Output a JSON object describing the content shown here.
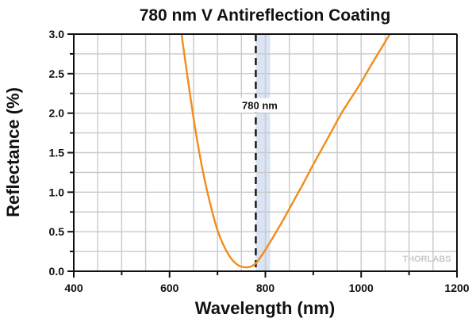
{
  "chart_data": {
    "type": "line",
    "title": "780 nm V Antireflection Coating",
    "xlabel": "Wavelength (nm)",
    "ylabel": "Reflectance (%)",
    "xlim": [
      400,
      1200
    ],
    "ylim": [
      0,
      3.0
    ],
    "xticks": [
      400,
      600,
      800,
      1000,
      1200
    ],
    "xtick_labels": [
      "400",
      "600",
      "800",
      "1000",
      "1200"
    ],
    "yticks": [
      0,
      0.5,
      1.0,
      1.5,
      2.0,
      2.5,
      3.0
    ],
    "ytick_labels": [
      "0.0",
      "0.5",
      "1.0",
      "1.5",
      "2.0",
      "2.5",
      "3.0"
    ],
    "x_minor_step": 100,
    "y_minor_step": 0.25,
    "grid": true,
    "series": [
      {
        "name": "Reflectance",
        "color": "#f28c1c",
        "x": [
          625,
          640,
          655,
          670,
          685,
          700,
          715,
          730,
          745,
          760,
          770,
          780,
          790,
          800,
          820,
          840,
          860,
          880,
          900,
          920,
          940,
          960,
          980,
          1000,
          1020,
          1040,
          1060
        ],
        "y": [
          3.0,
          2.35,
          1.75,
          1.25,
          0.85,
          0.52,
          0.3,
          0.15,
          0.07,
          0.05,
          0.06,
          0.1,
          0.18,
          0.27,
          0.47,
          0.68,
          0.9,
          1.12,
          1.35,
          1.57,
          1.79,
          2.01,
          2.2,
          2.39,
          2.6,
          2.8,
          3.0
        ]
      }
    ],
    "annotations": [
      {
        "type": "vline",
        "x": 780,
        "style": "dashed",
        "color": "#111111",
        "label": "780 nm",
        "label_y": 2.1
      },
      {
        "type": "band",
        "x0": 780,
        "x1": 810,
        "color": "#dbe4f3"
      }
    ],
    "watermark": "THORLABS",
    "legend": "none"
  }
}
